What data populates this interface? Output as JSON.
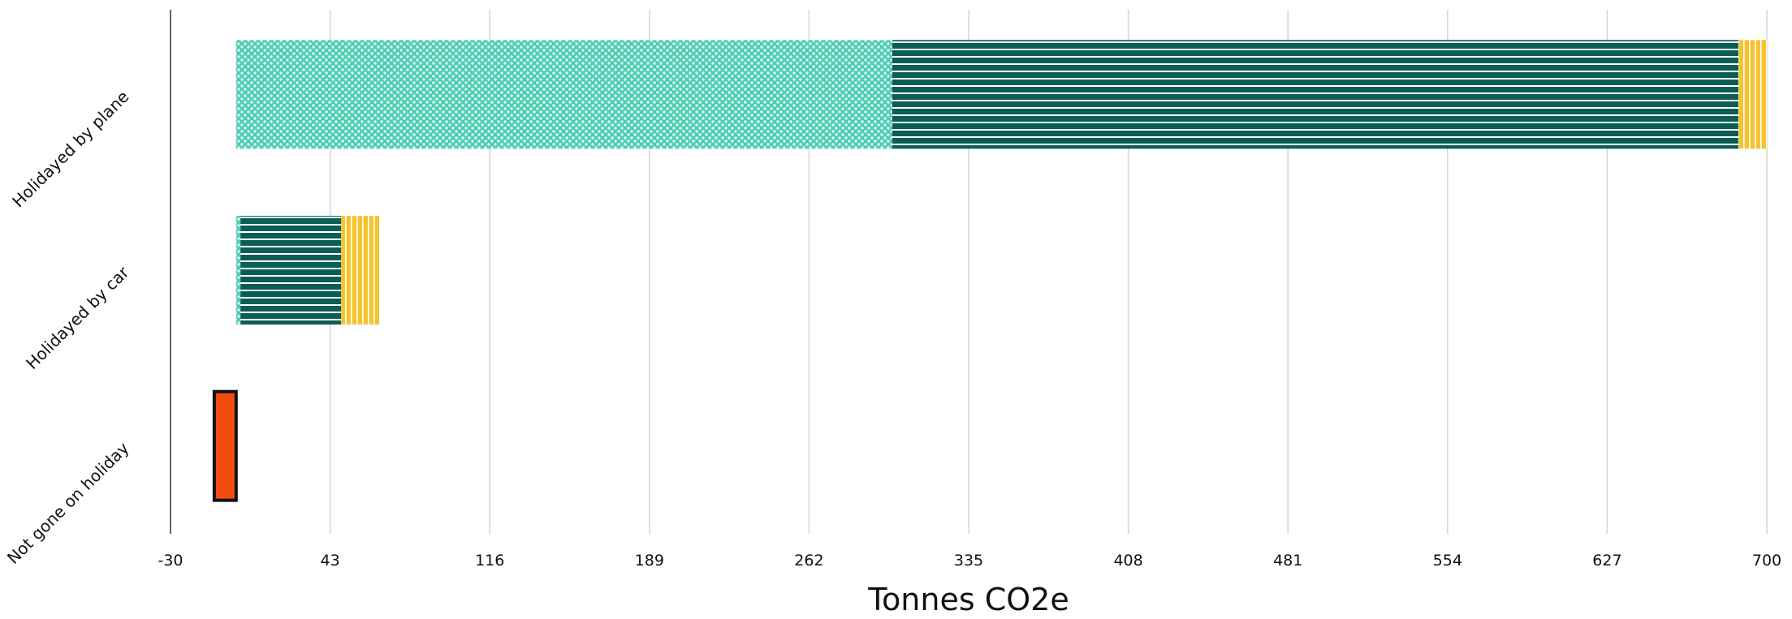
{
  "chart_data": {
    "type": "bar",
    "orientation": "horizontal",
    "stacked": true,
    "xlabel": "Tonnes CO2e",
    "ylabel": "",
    "xlim": [
      -30,
      700
    ],
    "xticks": [
      -30,
      43,
      116,
      189,
      262,
      335,
      408,
      481,
      554,
      627,
      700
    ],
    "grid": true,
    "categories": [
      "Holidayed by plane",
      "Holidayed by car",
      "Not gone on holiday"
    ],
    "series": [
      {
        "values": [
          300,
          2,
          0
        ],
        "color": "#4ecdb4",
        "pattern": "crosshatch"
      },
      {
        "values": [
          387,
          46,
          0
        ],
        "color": "#0b5e55",
        "pattern": "horizontal-lines"
      },
      {
        "values": [
          13,
          18,
          0
        ],
        "color": "#f4c430",
        "pattern": "vertical-lines"
      },
      {
        "values": [
          0,
          0,
          -10
        ],
        "color": "#f04e0f",
        "pattern": "solid"
      }
    ]
  }
}
